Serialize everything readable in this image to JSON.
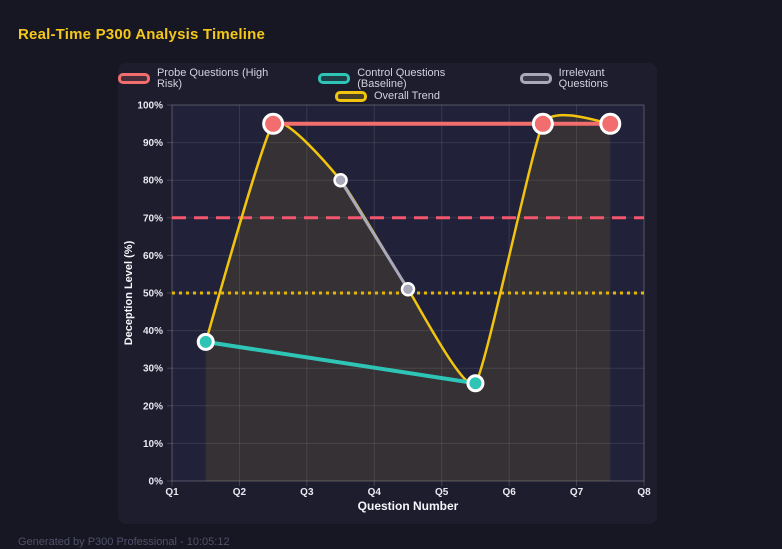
{
  "title": "Real-Time P300 Analysis Timeline",
  "footer": {
    "text": "Generated by P300 Professional - 10:05:12"
  },
  "colors": {
    "page_bg": "#171723",
    "card_bg": "#1d1d2e",
    "plot_bg": "#21213a",
    "grid": "rgba(255,255,255,0.10)",
    "plot_border": "rgba(255,255,255,0.16)",
    "tick_text": "#e9e9f2",
    "axis_title_text": "#f5f5fa",
    "legend_text": "#d2d2de",
    "title_text": "#f5c71a",
    "marker_border": "#ffffff"
  },
  "chart_data": {
    "type": "line",
    "title": "Real-Time P300 Analysis Timeline",
    "xlabel": "Question Number",
    "ylabel": "Deception Level (%)",
    "x_ticks": [
      "Q1",
      "Q2",
      "Q3",
      "Q4",
      "Q5",
      "Q6",
      "Q7",
      "Q8"
    ],
    "xlim": [
      1,
      8
    ],
    "y_ticks": [
      0,
      10,
      20,
      30,
      40,
      50,
      60,
      70,
      80,
      90,
      100
    ],
    "y_tick_suffix": "%",
    "ylim": [
      0,
      100
    ],
    "grid": true,
    "legend_position": "top",
    "legend_rows": [
      [
        0,
        1,
        2
      ],
      [
        3
      ]
    ],
    "series": [
      {
        "name": "Probe Questions (High Risk)",
        "color": "#f26d6d",
        "line_width": 4,
        "marker_radius": 9.5,
        "marker_border_width": 3,
        "smooth": false,
        "points": [
          {
            "x": 2.5,
            "y": 95
          },
          {
            "x": 6.5,
            "y": 95
          },
          {
            "x": 7.5,
            "y": 95
          }
        ]
      },
      {
        "name": "Control Questions (Baseline)",
        "color": "#2ec4b6",
        "line_width": 4,
        "marker_radius": 7.5,
        "marker_border_width": 3,
        "smooth": false,
        "points": [
          {
            "x": 1.5,
            "y": 37
          },
          {
            "x": 5.5,
            "y": 26
          }
        ]
      },
      {
        "name": "Irrelevant Questions",
        "color": "#a9a9b9",
        "line_width": 3,
        "marker_radius": 6,
        "marker_border_width": 2.5,
        "smooth": false,
        "points": [
          {
            "x": 3.5,
            "y": 80
          },
          {
            "x": 4.5,
            "y": 51
          }
        ]
      },
      {
        "name": "Overall Trend",
        "color": "#f1c40f",
        "line_width": 2.5,
        "markers": false,
        "smooth": true,
        "fill_color": "rgba(235,195,0,0.10)",
        "points": [
          {
            "x": 1.5,
            "y": 37
          },
          {
            "x": 2.5,
            "y": 95
          },
          {
            "x": 3.5,
            "y": 80
          },
          {
            "x": 4.5,
            "y": 51
          },
          {
            "x": 5.5,
            "y": 26
          },
          {
            "x": 6.5,
            "y": 95
          },
          {
            "x": 7.5,
            "y": 95
          }
        ]
      }
    ],
    "thresholds": [
      {
        "name": "high-risk-threshold",
        "y": 70,
        "color": "#f2566d",
        "dash": "14 8",
        "width": 3
      },
      {
        "name": "baseline-threshold",
        "y": 50,
        "color": "#e3b505",
        "dash": "3 4",
        "width": 3
      }
    ]
  }
}
